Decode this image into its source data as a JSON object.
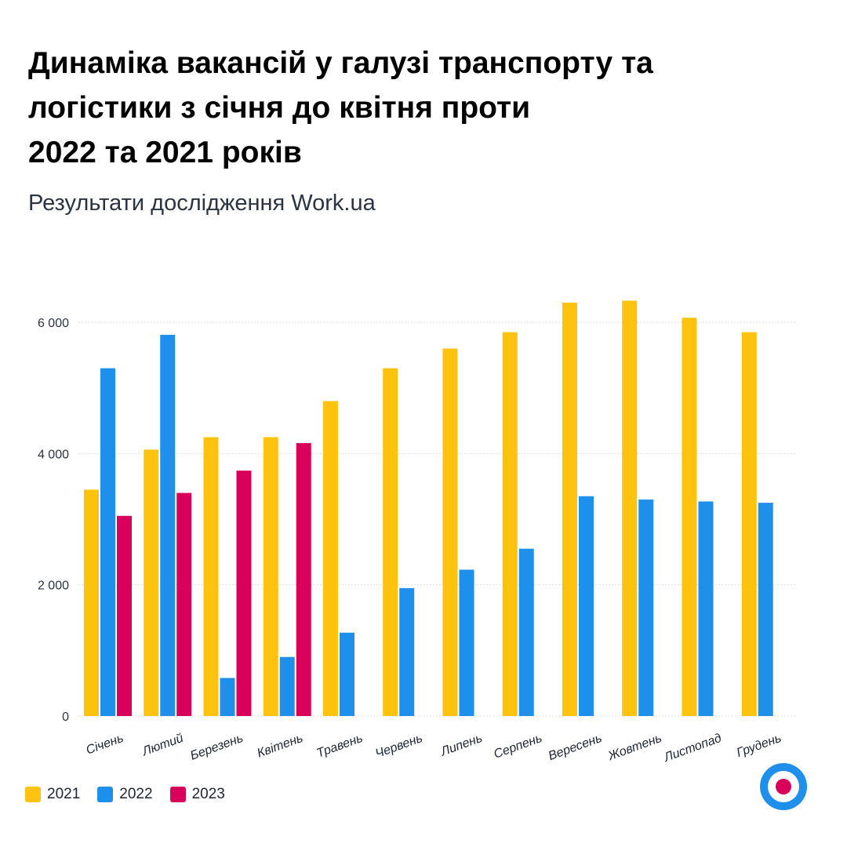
{
  "title_lines": [
    "Динаміка вакансій у галузі транспорту та",
    "логістики з січня до квітня проти",
    "2022 та 2021 років"
  ],
  "subtitle": "Результати дослідження Work.ua",
  "colors": {
    "2021": "#FFC20E",
    "2022": "#1E90EC",
    "2023": "#D8005A",
    "grid": "#d9dde2"
  },
  "logo_icon": "target-icon",
  "chart_data": {
    "type": "bar",
    "categories": [
      "Січень",
      "Лютий",
      "Березень",
      "Квітень",
      "Травень",
      "Червень",
      "Липень",
      "Серпень",
      "Вересень",
      "Жовтень",
      "Листопад",
      "Грудень"
    ],
    "series": [
      {
        "name": "2021",
        "values": [
          3450,
          4060,
          4250,
          4250,
          4800,
          5300,
          5600,
          5850,
          6300,
          6330,
          6070,
          5850
        ]
      },
      {
        "name": "2022",
        "values": [
          5300,
          5810,
          580,
          900,
          1270,
          1950,
          2230,
          2550,
          3350,
          3300,
          3270,
          3250
        ]
      },
      {
        "name": "2023",
        "values": [
          3050,
          3400,
          3740,
          4160,
          null,
          null,
          null,
          null,
          null,
          null,
          null,
          null
        ]
      }
    ],
    "yticks": [
      0,
      2000,
      4000,
      6000
    ],
    "ytick_labels": [
      "0",
      "2 000",
      "4 000",
      "6 000"
    ],
    "ylim": [
      0,
      6500
    ],
    "legend": [
      "2021",
      "2022",
      "2023"
    ],
    "legend_position": "bottom-left",
    "grid": true
  }
}
